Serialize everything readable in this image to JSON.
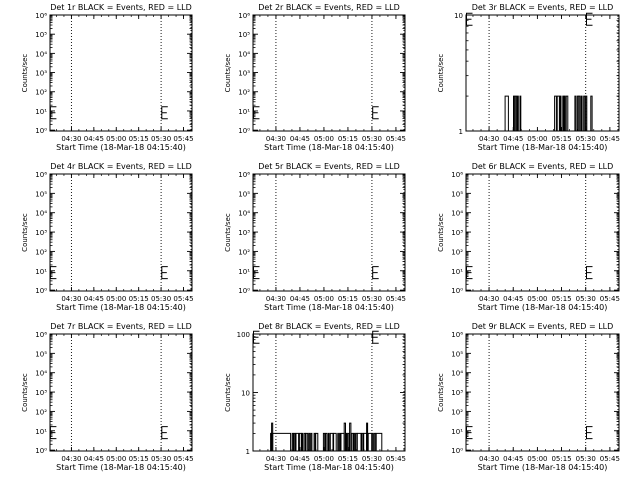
{
  "chart_data": [
    {
      "type": "line",
      "title": "Det 1r BLACK = Events, RED = LLD",
      "xlabel": "Start Time (18-Mar-18 04:15:40)",
      "ylabel": "Counts/sec",
      "xlim": [
        0,
        95
      ],
      "xtick_labels": [
        "04:30",
        "04:45",
        "05:00",
        "05:15",
        "05:30",
        "05:45"
      ],
      "xtick_values": [
        14.33,
        29.33,
        44.33,
        59.33,
        74.33,
        89.33
      ],
      "yscale": "log",
      "ylim": [
        0.9,
        1000000
      ],
      "ytick_labels": [
        "10⁰",
        "10¹",
        "10²",
        "10³",
        "10⁴",
        "10⁵",
        "10⁶"
      ],
      "ytick_values": [
        1,
        10,
        100,
        1000,
        10000,
        100000,
        1000000
      ],
      "vlines": [
        14.33,
        74.33,
        94.33
      ],
      "markers": [
        {
          "x": 0.3,
          "y": 8
        },
        {
          "x": 74.8,
          "y": 8
        }
      ],
      "series": []
    },
    {
      "type": "line",
      "title": "Det 2r BLACK = Events, RED = LLD",
      "xlabel": "Start Time (18-Mar-18 04:15:40)",
      "ylabel": "Counts/sec",
      "xlim": [
        0,
        95
      ],
      "xtick_labels": [
        "04:30",
        "04:45",
        "05:00",
        "05:15",
        "05:30",
        "05:45"
      ],
      "xtick_values": [
        14.33,
        29.33,
        44.33,
        59.33,
        74.33,
        89.33
      ],
      "yscale": "log",
      "ylim": [
        0.9,
        1000000
      ],
      "ytick_labels": [
        "10⁰",
        "10¹",
        "10²",
        "10³",
        "10⁴",
        "10⁵",
        "10⁶"
      ],
      "ytick_values": [
        1,
        10,
        100,
        1000,
        10000,
        100000,
        1000000
      ],
      "vlines": [
        14.33,
        74.33,
        94.33
      ],
      "markers": [
        {
          "x": 0.3,
          "y": 8
        },
        {
          "x": 74.8,
          "y": 8
        }
      ],
      "series": []
    },
    {
      "type": "line",
      "title": "Det 3r BLACK = Events, RED = LLD",
      "xlabel": "Start Time (18-Mar-18 04:15:40)",
      "ylabel": "Counts/sec",
      "xlim": [
        0,
        95
      ],
      "xtick_labels": [
        "04:30",
        "04:45",
        "05:00",
        "05:15",
        "05:30",
        "05:45"
      ],
      "xtick_values": [
        14.33,
        29.33,
        44.33,
        59.33,
        74.33,
        89.33
      ],
      "yscale": "log",
      "ylim": [
        1,
        10
      ],
      "ytick_labels": [
        "1",
        "10"
      ],
      "ytick_values": [
        1,
        10
      ],
      "vlines": [
        14.33,
        74.33,
        94.33
      ],
      "markers": [
        {
          "x": 0.3,
          "y": 9.2
        },
        {
          "x": 74.8,
          "y": 9.2
        }
      ],
      "series": [
        {
          "segments": [
            [
              24.3,
              26.3,
              2
            ],
            [
              29.5,
              30.2,
              2
            ],
            [
              30.6,
              31.4,
              2
            ],
            [
              31.9,
              32.5,
              2
            ],
            [
              33.5,
              34.0,
              2
            ],
            [
              55.0,
              56.1,
              2
            ],
            [
              56.6,
              58.0,
              2
            ],
            [
              58.4,
              59.0,
              2
            ],
            [
              60.1,
              60.7,
              2
            ],
            [
              61.0,
              61.6,
              2
            ],
            [
              62.2,
              63.2,
              2
            ],
            [
              67.6,
              68.3,
              2
            ],
            [
              69.2,
              70.0,
              2
            ],
            [
              70.2,
              71.0,
              2
            ],
            [
              71.7,
              72.1,
              2
            ],
            [
              73.1,
              73.8,
              2
            ],
            [
              74.3,
              75.0,
              2
            ],
            [
              77.5,
              78.3,
              2
            ]
          ],
          "baseline": 1
        }
      ]
    },
    {
      "type": "line",
      "title": "Det 4r BLACK = Events, RED = LLD",
      "xlabel": "Start Time (18-Mar-18 04:15:40)",
      "ylabel": "Counts/sec",
      "xlim": [
        0,
        95
      ],
      "xtick_labels": [
        "04:30",
        "04:45",
        "05:00",
        "05:15",
        "05:30",
        "05:45"
      ],
      "xtick_values": [
        14.33,
        29.33,
        44.33,
        59.33,
        74.33,
        89.33
      ],
      "yscale": "log",
      "ylim": [
        0.9,
        1000000
      ],
      "ytick_labels": [
        "10⁰",
        "10¹",
        "10²",
        "10³",
        "10⁴",
        "10⁵",
        "10⁶"
      ],
      "ytick_values": [
        1,
        10,
        100,
        1000,
        10000,
        100000,
        1000000
      ],
      "vlines": [
        14.33,
        74.33,
        94.33
      ],
      "markers": [
        {
          "x": 0.3,
          "y": 8
        },
        {
          "x": 74.8,
          "y": 8
        }
      ],
      "series": []
    },
    {
      "type": "line",
      "title": "Det 5r BLACK = Events, RED = LLD",
      "xlabel": "Start Time (18-Mar-18 04:15:40)",
      "ylabel": "Counts/sec",
      "xlim": [
        0,
        95
      ],
      "xtick_labels": [
        "04:30",
        "04:45",
        "05:00",
        "05:15",
        "05:30",
        "05:45"
      ],
      "xtick_values": [
        14.33,
        29.33,
        44.33,
        59.33,
        74.33,
        89.33
      ],
      "yscale": "log",
      "ylim": [
        0.9,
        1000000
      ],
      "ytick_labels": [
        "10⁰",
        "10¹",
        "10²",
        "10³",
        "10⁴",
        "10⁵",
        "10⁶"
      ],
      "ytick_values": [
        1,
        10,
        100,
        1000,
        10000,
        100000,
        1000000
      ],
      "vlines": [
        14.33,
        74.33,
        94.33
      ],
      "markers": [
        {
          "x": 0.3,
          "y": 8
        },
        {
          "x": 74.8,
          "y": 8
        }
      ],
      "series": []
    },
    {
      "type": "line",
      "title": "Det 6r BLACK = Events, RED = LLD",
      "xlabel": "Start Time (18-Mar-18 04:15:40)",
      "ylabel": "Counts/sec",
      "xlim": [
        0,
        95
      ],
      "xtick_labels": [
        "04:30",
        "04:45",
        "05:00",
        "05:15",
        "05:30",
        "05:45"
      ],
      "xtick_values": [
        14.33,
        29.33,
        44.33,
        59.33,
        74.33,
        89.33
      ],
      "yscale": "log",
      "ylim": [
        0.9,
        1000000
      ],
      "ytick_labels": [
        "10⁰",
        "10¹",
        "10²",
        "10³",
        "10⁴",
        "10⁵",
        "10⁶"
      ],
      "ytick_values": [
        1,
        10,
        100,
        1000,
        10000,
        100000,
        1000000
      ],
      "vlines": [
        14.33,
        74.33,
        94.33
      ],
      "markers": [
        {
          "x": 0.3,
          "y": 8
        },
        {
          "x": 74.8,
          "y": 8
        }
      ],
      "series": []
    },
    {
      "type": "line",
      "title": "Det 7r BLACK = Events, RED = LLD",
      "xlabel": "Start Time (18-Mar-18 04:15:40)",
      "ylabel": "Counts/sec",
      "xlim": [
        0,
        95
      ],
      "xtick_labels": [
        "04:30",
        "04:45",
        "05:00",
        "05:15",
        "05:30",
        "05:45"
      ],
      "xtick_values": [
        14.33,
        29.33,
        44.33,
        59.33,
        74.33,
        89.33
      ],
      "yscale": "log",
      "ylim": [
        0.9,
        1000000
      ],
      "ytick_labels": [
        "10⁰",
        "10¹",
        "10²",
        "10³",
        "10⁴",
        "10⁵",
        "10⁶"
      ],
      "ytick_values": [
        1,
        10,
        100,
        1000,
        10000,
        100000,
        1000000
      ],
      "vlines": [
        14.33,
        74.33,
        94.33
      ],
      "markers": [
        {
          "x": 0.3,
          "y": 8
        },
        {
          "x": 74.8,
          "y": 8
        }
      ],
      "series": []
    },
    {
      "type": "line",
      "title": "Det 8r BLACK = Events, RED = LLD",
      "xlabel": "Start Time (18-Mar-18 04:15:40)",
      "ylabel": "Counts/sec",
      "xlim": [
        0,
        95
      ],
      "xtick_labels": [
        "04:30",
        "04:45",
        "05:00",
        "05:15",
        "05:30",
        "05:45"
      ],
      "xtick_values": [
        14.33,
        29.33,
        44.33,
        59.33,
        74.33,
        89.33
      ],
      "yscale": "log",
      "ylim": [
        1,
        100
      ],
      "ytick_labels": [
        "1",
        "10",
        "100"
      ],
      "ytick_values": [
        1,
        10,
        100
      ],
      "vlines": [
        14.33,
        74.33,
        94.33
      ],
      "markers": [
        {
          "x": 0.3,
          "y": 88
        },
        {
          "x": 74.8,
          "y": 88
        }
      ],
      "series": [
        {
          "segments": [
            [
              11.0,
              11.5,
              2
            ],
            [
              11.6,
              12.3,
              3
            ],
            [
              12.3,
              23.5,
              2
            ],
            [
              24.5,
              25.2,
              2
            ],
            [
              25.6,
              26.4,
              2
            ],
            [
              26.9,
              28.5,
              2
            ],
            [
              29.0,
              30.2,
              2
            ],
            [
              30.5,
              31.1,
              2
            ],
            [
              32.0,
              32.8,
              2
            ],
            [
              33.1,
              34.2,
              2
            ],
            [
              34.8,
              35.5,
              2
            ],
            [
              36.1,
              36.8,
              2
            ],
            [
              38.2,
              38.9,
              2
            ],
            [
              39.2,
              40.5,
              2
            ],
            [
              44.0,
              44.8,
              2
            ],
            [
              45.3,
              46.2,
              2
            ],
            [
              47.0,
              47.6,
              2
            ],
            [
              48.3,
              50.0,
              2
            ],
            [
              50.4,
              52.0,
              2
            ],
            [
              53.0,
              53.4,
              2
            ],
            [
              54.1,
              54.4,
              2
            ],
            [
              55.0,
              57.0,
              2
            ],
            [
              57.0,
              57.8,
              3
            ],
            [
              58.0,
              58.6,
              2
            ],
            [
              59.2,
              60.0,
              2
            ],
            [
              60.4,
              61.2,
              3
            ],
            [
              61.5,
              62.5,
              2
            ],
            [
              63.0,
              63.7,
              2
            ],
            [
              64.2,
              65.0,
              2
            ],
            [
              65.2,
              67.5,
              2
            ],
            [
              68.0,
              68.8,
              2
            ],
            [
              69.2,
              71.0,
              2
            ],
            [
              71.0,
              71.6,
              3
            ],
            [
              72.0,
              74.2,
              2
            ],
            [
              74.5,
              75.2,
              2
            ],
            [
              75.8,
              76.6,
              2
            ],
            [
              77.0,
              80.5,
              2
            ]
          ],
          "baseline": 1
        }
      ]
    },
    {
      "type": "line",
      "title": "Det 9r BLACK = Events, RED = LLD",
      "xlabel": "Start Time (18-Mar-18 04:15:40)",
      "ylabel": "Counts/sec",
      "xlim": [
        0,
        95
      ],
      "xtick_labels": [
        "04:30",
        "04:45",
        "05:00",
        "05:15",
        "05:30",
        "05:45"
      ],
      "xtick_values": [
        14.33,
        29.33,
        44.33,
        59.33,
        74.33,
        89.33
      ],
      "yscale": "log",
      "ylim": [
        0.9,
        1000000
      ],
      "ytick_labels": [
        "10⁰",
        "10¹",
        "10²",
        "10³",
        "10⁴",
        "10⁵",
        "10⁶"
      ],
      "ytick_values": [
        1,
        10,
        100,
        1000,
        10000,
        100000,
        1000000
      ],
      "vlines": [
        14.33,
        74.33,
        94.33
      ],
      "markers": [
        {
          "x": 0.3,
          "y": 8
        },
        {
          "x": 74.8,
          "y": 8
        }
      ],
      "series": []
    }
  ]
}
